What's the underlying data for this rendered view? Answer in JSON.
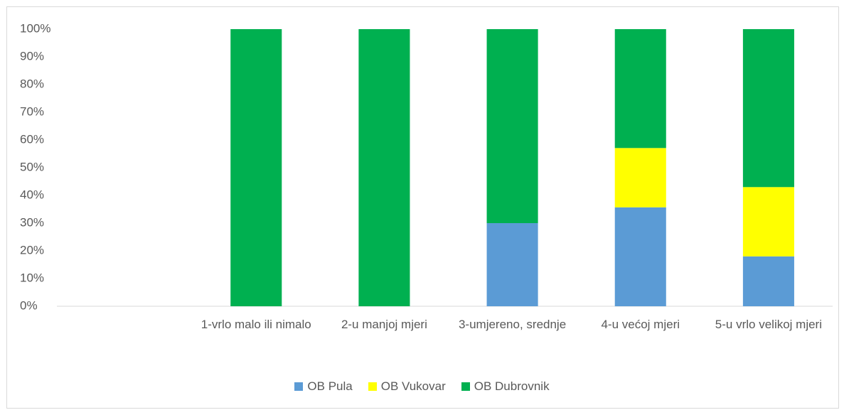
{
  "chart_data": {
    "type": "stacked_bar",
    "categories": [
      null,
      "1-vrlo malo ili nimalo",
      "2-u manjoj mjeri",
      "3-umjereno, srednje",
      "4-u većoj mjeri",
      "5-u vrlo velikoj mjeri"
    ],
    "series": [
      {
        "name": "OB Pula",
        "color": "#5b9bd5",
        "values": [
          null,
          0,
          0,
          30,
          35.7,
          18
        ]
      },
      {
        "name": "OB Vukovar",
        "color": "#ffff00",
        "values": [
          null,
          0,
          0,
          0,
          21.4,
          25
        ]
      },
      {
        "name": "OB Dubrovnik",
        "color": "#00b050",
        "values": [
          null,
          100,
          100,
          70,
          42.9,
          57
        ]
      }
    ],
    "ylim": [
      0,
      100
    ],
    "yticks": [
      {
        "value": 0,
        "label": "0%"
      },
      {
        "value": 10,
        "label": "10%"
      },
      {
        "value": 20,
        "label": "20%"
      },
      {
        "value": 30,
        "label": "30%"
      },
      {
        "value": 40,
        "label": "40%"
      },
      {
        "value": 50,
        "label": "50%"
      },
      {
        "value": 60,
        "label": "60%"
      },
      {
        "value": 70,
        "label": "70%"
      },
      {
        "value": 80,
        "label": "80%"
      },
      {
        "value": 90,
        "label": "90%"
      },
      {
        "value": 100,
        "label": "100%"
      }
    ],
    "legend": "bottom"
  }
}
